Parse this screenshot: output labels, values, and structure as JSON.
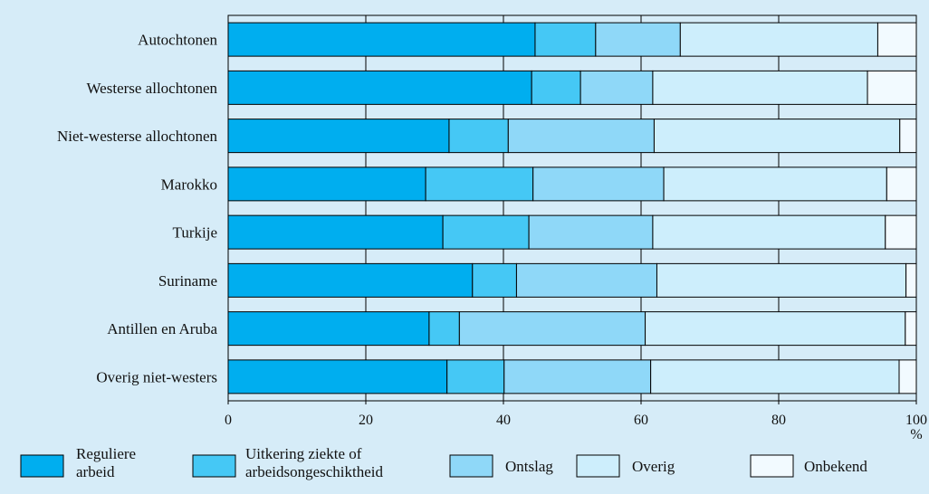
{
  "chart_data": {
    "type": "bar",
    "orientation": "horizontal",
    "stacked": true,
    "categories": [
      "Autochtonen",
      "Westerse allochtonen",
      "Niet-westerse allochtonen",
      "Marokko",
      "Turkije",
      "Suriname",
      "Antillen en Aruba",
      "Overig niet-westers"
    ],
    "series": [
      {
        "name": "Reguliere arbeid",
        "legend_lines": [
          "Reguliere",
          "arbeid"
        ],
        "color": "#00aeef",
        "values": [
          44.6,
          44.1,
          32.1,
          28.7,
          31.2,
          35.5,
          29.2,
          31.8
        ]
      },
      {
        "name": "Uitkering ziekte of arbeidsongeschiktheid",
        "legend_lines": [
          "Uitkering ziekte of",
          "arbeidsongeschiktheid"
        ],
        "color": "#45c8f5",
        "values": [
          8.8,
          7.1,
          8.6,
          15.6,
          12.5,
          6.4,
          4.4,
          8.3
        ]
      },
      {
        "name": "Ontslag",
        "legend_lines": [
          "Ontslag"
        ],
        "color": "#8fd8f8",
        "values": [
          12.3,
          10.5,
          21.2,
          19.0,
          18.0,
          20.4,
          27.0,
          21.3
        ]
      },
      {
        "name": "Overig",
        "legend_lines": [
          "Overig"
        ],
        "color": "#cdeefc",
        "values": [
          28.7,
          31.2,
          35.7,
          32.4,
          33.8,
          36.2,
          37.8,
          36.1
        ]
      },
      {
        "name": "Onbekend",
        "legend_lines": [
          "Onbekend"
        ],
        "color": "#f2faff",
        "values": [
          5.6,
          7.1,
          2.4,
          4.3,
          4.5,
          1.5,
          1.6,
          2.5
        ]
      }
    ],
    "xlim": [
      0,
      100
    ],
    "xticks": [
      0,
      20,
      40,
      60,
      80,
      100
    ],
    "x_unit": "%",
    "title": "",
    "xlabel": "",
    "ylabel": "",
    "grid": "vertical",
    "legend_position": "bottom"
  }
}
